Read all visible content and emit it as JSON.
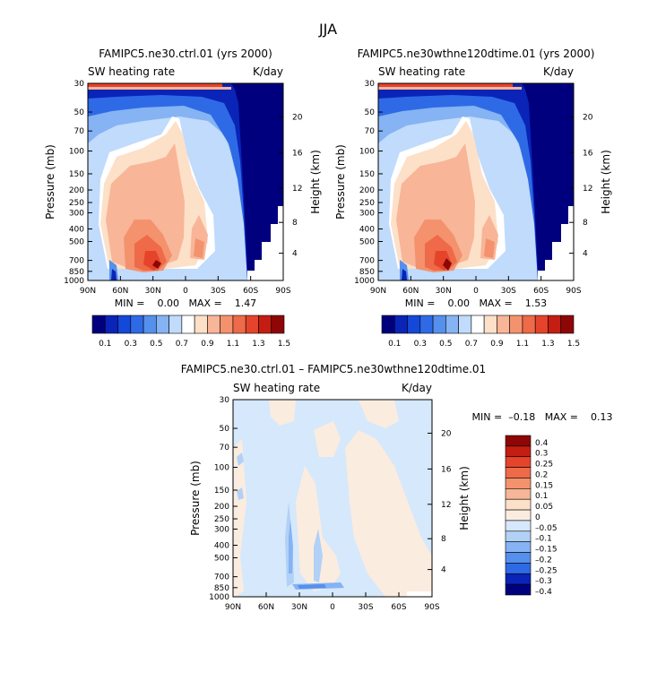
{
  "main_title": "JJA",
  "chart_data": [
    {
      "type": "heatmap",
      "title": "FAMIPC5.ne30.ctrl.01 (yrs 2000)",
      "left_label": "SW heating rate",
      "units": "K/day",
      "ylabel": "Pressure (mb)",
      "y2label": "Height (km)",
      "x_ticks": [
        "90N",
        "60N",
        "30N",
        "0",
        "30S",
        "60S",
        "90S"
      ],
      "y_ticks": [
        "30",
        "50",
        "70",
        "100",
        "150",
        "200",
        "250",
        "300",
        "400",
        "500",
        "700",
        "850",
        "1000"
      ],
      "y2_ticks": [
        "20",
        "16",
        "12",
        "8",
        "4"
      ],
      "stats": "MIN =    0.00   MAX =    1.47",
      "min": 0.0,
      "max": 1.47,
      "colorbar_labels": [
        "0.1",
        "0.3",
        "0.5",
        "0.7",
        "0.9",
        "1.1",
        "1.3",
        "1.5"
      ]
    },
    {
      "type": "heatmap",
      "title": "FAMIPC5.ne30wthne120dtime.01 (yrs 2000)",
      "left_label": "SW heating rate",
      "units": "K/day",
      "ylabel": "Pressure (mb)",
      "y2label": "Height (km)",
      "x_ticks": [
        "90N",
        "60N",
        "30N",
        "0",
        "30S",
        "60S",
        "90S"
      ],
      "y_ticks": [
        "30",
        "50",
        "70",
        "100",
        "150",
        "200",
        "250",
        "300",
        "400",
        "500",
        "700",
        "850",
        "1000"
      ],
      "y2_ticks": [
        "20",
        "16",
        "12",
        "8",
        "4"
      ],
      "stats": "MIN =    0.00   MAX =    1.53",
      "min": 0.0,
      "max": 1.53,
      "colorbar_labels": [
        "0.1",
        "0.3",
        "0.5",
        "0.7",
        "0.9",
        "1.1",
        "1.3",
        "1.5"
      ]
    },
    {
      "type": "heatmap",
      "title": "FAMIPC5.ne30.ctrl.01 – FAMIPC5.ne30wthne120dtime.01",
      "left_label": "SW heating rate",
      "units": "K/day",
      "ylabel": "Pressure (mb)",
      "y2label": "Height (km)",
      "x_ticks": [
        "90N",
        "60N",
        "30N",
        "0",
        "30S",
        "60S",
        "90S"
      ],
      "y_ticks": [
        "30",
        "50",
        "70",
        "100",
        "150",
        "200",
        "250",
        "300",
        "400",
        "500",
        "700",
        "850",
        "1000"
      ],
      "y2_ticks": [
        "20",
        "16",
        "12",
        "8",
        "4"
      ],
      "stats": "MIN =  –0.18   MAX =    0.13",
      "min": -0.18,
      "max": 0.13,
      "colorbar_labels": [
        "0.4",
        "0.3",
        "0.25",
        "0.2",
        "0.15",
        "0.1",
        "0.05",
        "0",
        "–0.05",
        "–0.1",
        "–0.15",
        "–0.2",
        "–0.25",
        "–0.3",
        "–0.4"
      ]
    }
  ],
  "colors": {
    "abs_scale": [
      "#00007f",
      "#0a24b8",
      "#1448d8",
      "#2f6ae6",
      "#5590ec",
      "#85b3f3",
      "#c0dbfb",
      "#ffffff",
      "#fde0c8",
      "#f8b598",
      "#f4926e",
      "#ee6a48",
      "#e5442b",
      "#c41e12",
      "#8e0606"
    ],
    "diff_scale": [
      "#8e0606",
      "#c41e12",
      "#e5442b",
      "#ee6a48",
      "#f4926e",
      "#f8b598",
      "#fde0c8",
      "#fbece0",
      "#d6e8fb",
      "#b1d1f7",
      "#85b3f3",
      "#5590ec",
      "#2f6ae6",
      "#0a24b8",
      "#00007f"
    ]
  }
}
